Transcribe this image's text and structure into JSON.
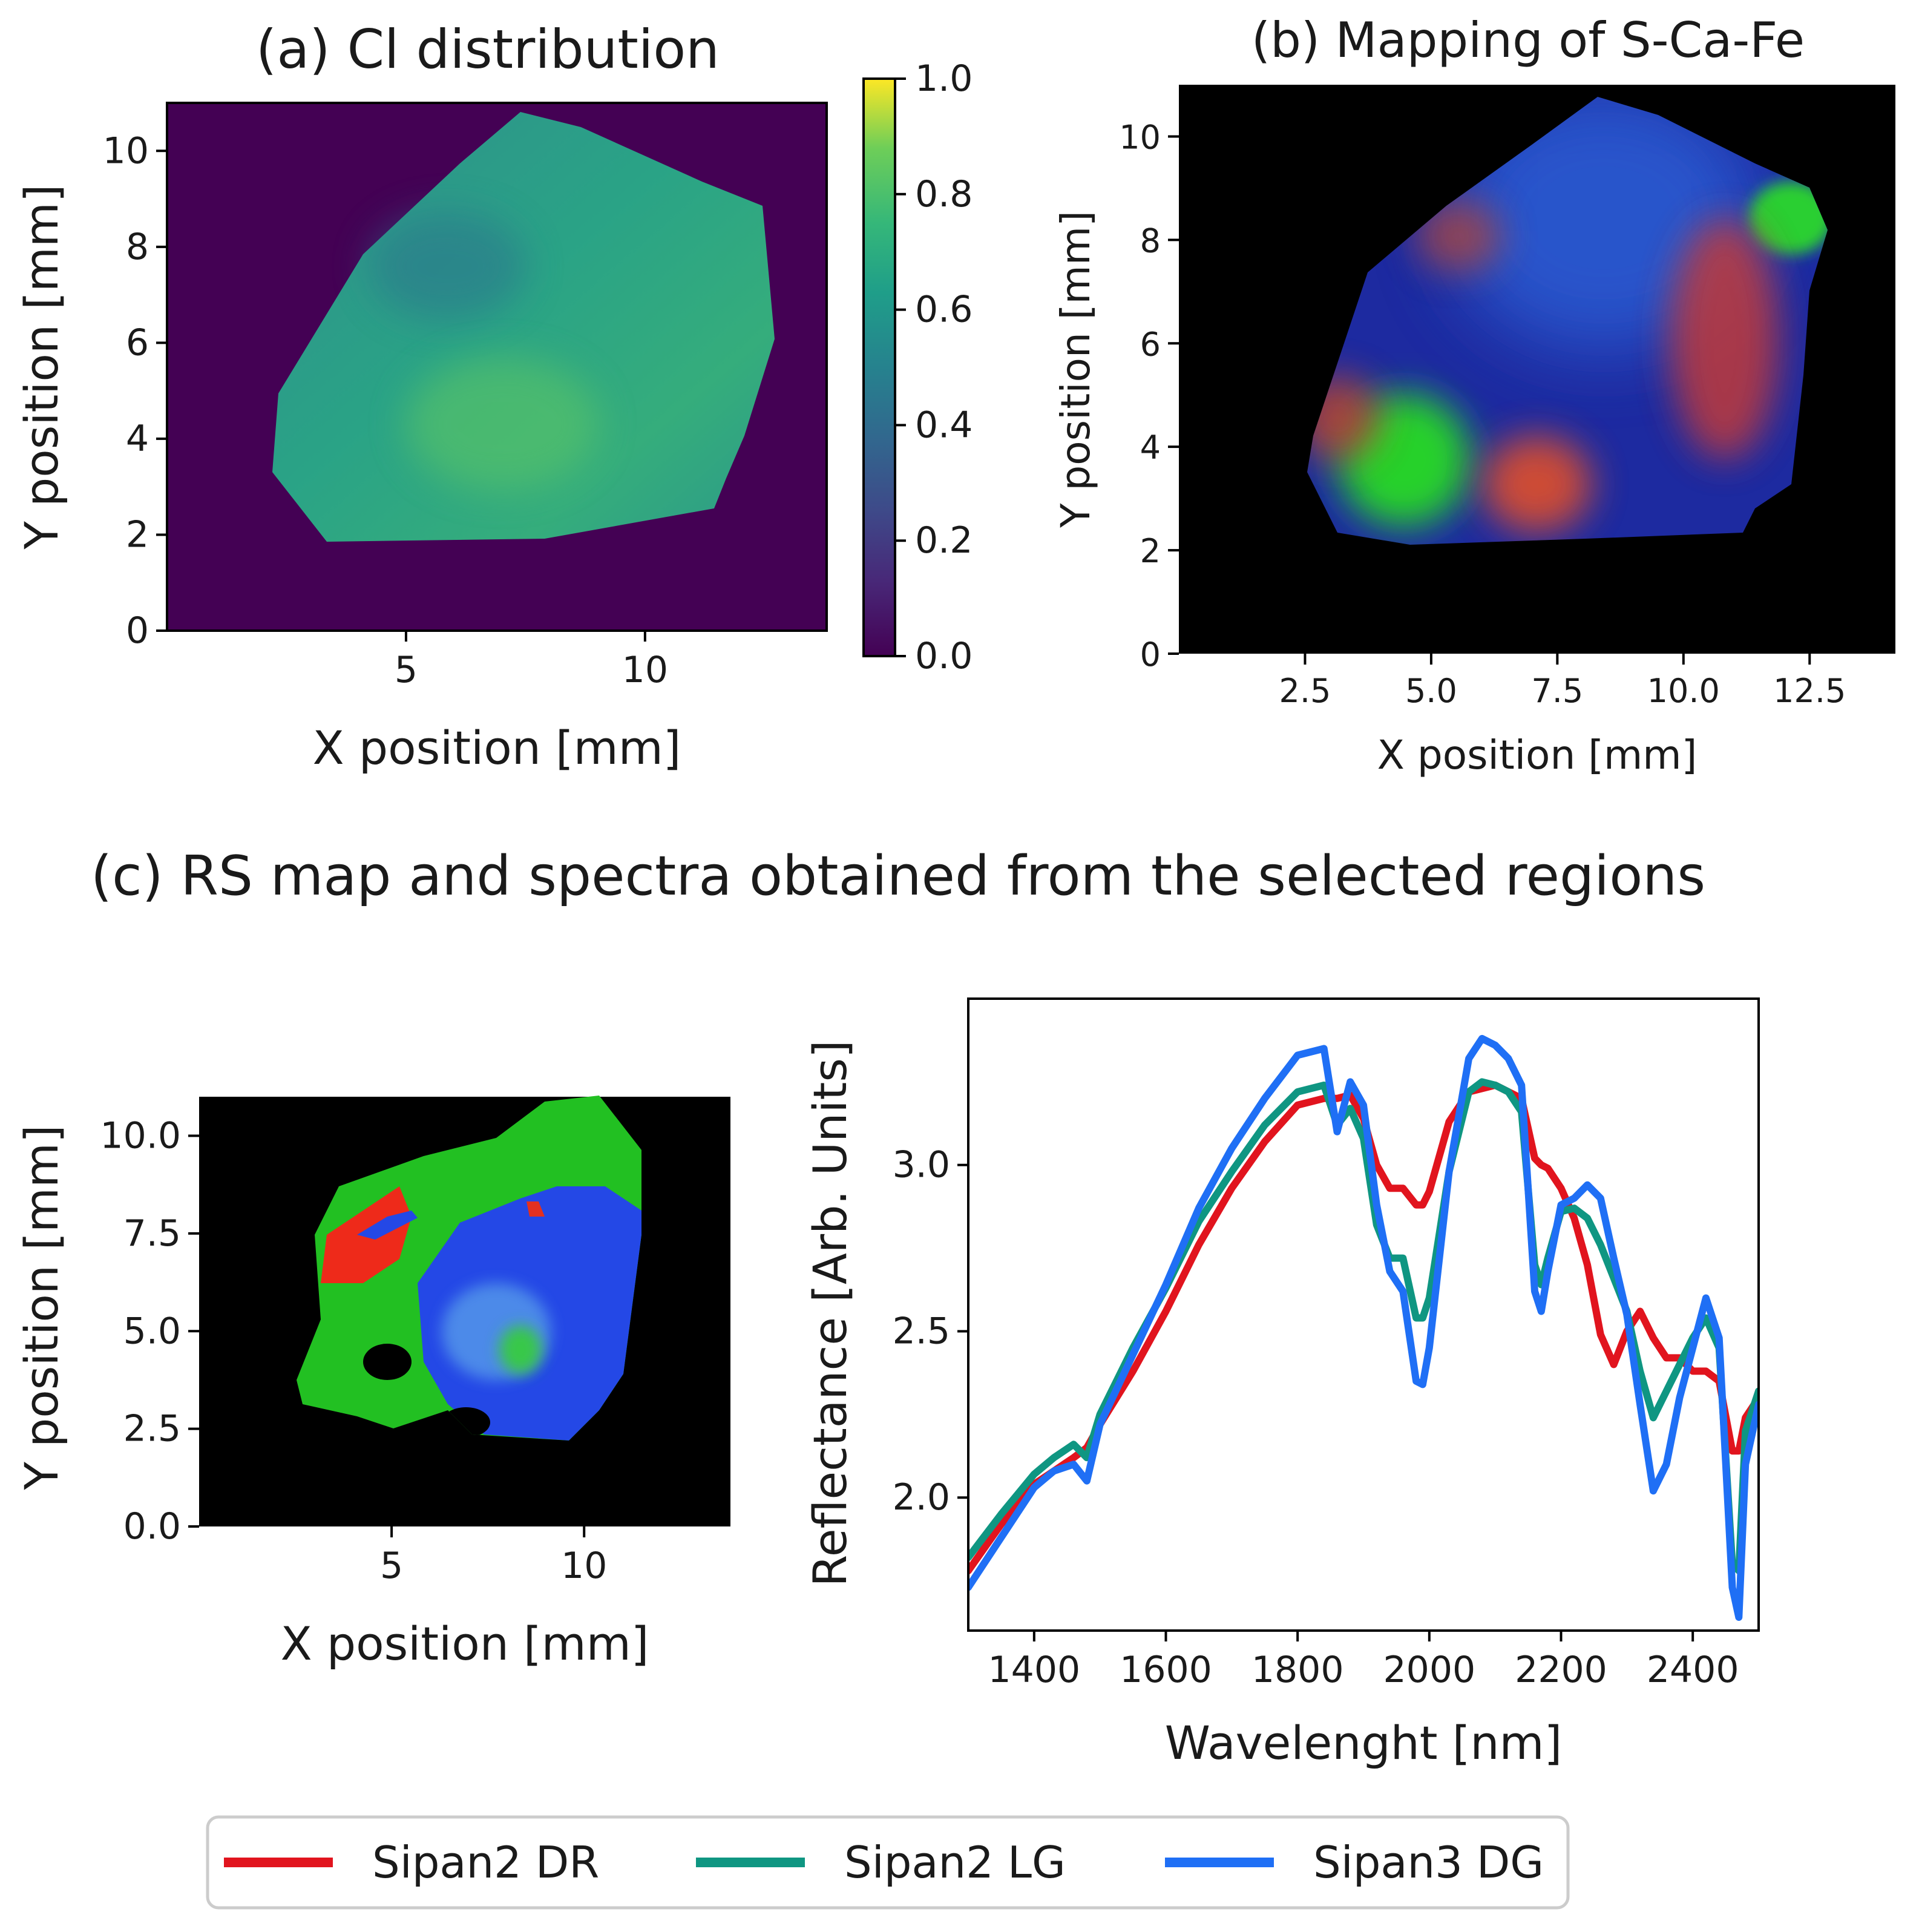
{
  "figure": {
    "panel_c_title": "(c) RS map and spectra obtained from the selected regions"
  },
  "colors": {
    "viridis_dark": "#440154",
    "sipan2_dr": "#e1141e",
    "sipan2_lg": "#0f9682",
    "sipan3_dg": "#1f6ff5",
    "map_background": "#000000"
  },
  "chart_data": [
    {
      "id": "a",
      "type": "heatmap",
      "title": "(a) Cl distribution",
      "xlabel": "X position [mm]",
      "ylabel": "Y position [mm]",
      "xlim": [
        0,
        13.8
      ],
      "ylim": [
        0,
        11
      ],
      "xticks": [
        5,
        10
      ],
      "xtick_labels": [
        "5",
        "10"
      ],
      "yticks": [
        0,
        2,
        4,
        6,
        8,
        10
      ],
      "ytick_labels": [
        "0",
        "2",
        "4",
        "6",
        "8",
        "10"
      ],
      "colormap": "viridis",
      "colorbar": {
        "ticks": [
          0.0,
          0.2,
          0.4,
          0.6,
          0.8,
          1.0
        ],
        "tick_labels": [
          "0.0",
          "0.2",
          "0.4",
          "0.6",
          "0.8",
          "1.0"
        ],
        "range": [
          0.0,
          1.0
        ]
      }
    },
    {
      "id": "b",
      "type": "heatmap",
      "title": "(b) Mapping of S-Ca-Fe",
      "xlabel": "X position [mm]",
      "ylabel": "Y position [mm]",
      "xlim": [
        0,
        14.2
      ],
      "ylim": [
        0,
        11
      ],
      "xticks": [
        2.5,
        5.0,
        7.5,
        10.0,
        12.5
      ],
      "xtick_labels": [
        "2.5",
        "5.0",
        "7.5",
        "10.0",
        "12.5"
      ],
      "yticks": [
        0,
        2,
        4,
        6,
        8,
        10
      ],
      "ytick_labels": [
        "0",
        "2",
        "4",
        "6",
        "8",
        "10"
      ],
      "channels": [
        "S",
        "Ca",
        "Fe"
      ]
    },
    {
      "id": "c-map",
      "type": "heatmap",
      "xlabel": "X position [mm]",
      "ylabel": "Y position [mm]",
      "xlim": [
        0,
        13.8
      ],
      "ylim": [
        0,
        11
      ],
      "xticks": [
        5,
        10
      ],
      "xtick_labels": [
        "5",
        "10"
      ],
      "yticks": [
        0.0,
        2.5,
        5.0,
        7.5,
        10.0
      ],
      "ytick_labels": [
        "0.0",
        "2.5",
        "5.0",
        "7.5",
        "10.0"
      ]
    },
    {
      "id": "c-spectra",
      "type": "line",
      "xlabel": "Wavelenght [nm]",
      "ylabel": "Reflectance [Arb. Units]",
      "xlim": [
        1300,
        2500
      ],
      "ylim": [
        1.6,
        3.5
      ],
      "xticks": [
        1400,
        1600,
        1800,
        2000,
        2200,
        2400
      ],
      "xtick_labels": [
        "1400",
        "1600",
        "1800",
        "2000",
        "2200",
        "2400"
      ],
      "yticks": [
        2.0,
        2.5,
        3.0
      ],
      "ytick_labels": [
        "2.0",
        "2.5",
        "3.0"
      ],
      "x": [
        1300,
        1350,
        1400,
        1430,
        1460,
        1480,
        1500,
        1550,
        1600,
        1650,
        1700,
        1750,
        1800,
        1820,
        1840,
        1860,
        1880,
        1900,
        1920,
        1940,
        1960,
        1980,
        1990,
        2000,
        2030,
        2060,
        2080,
        2100,
        2120,
        2140,
        2160,
        2170,
        2180,
        2200,
        2220,
        2240,
        2260,
        2280,
        2300,
        2320,
        2340,
        2360,
        2380,
        2400,
        2420,
        2440,
        2460,
        2470,
        2480,
        2500
      ],
      "series": [
        {
          "name": "Sipan2 DR",
          "values": [
            1.78,
            1.92,
            2.04,
            2.08,
            2.12,
            2.15,
            2.22,
            2.38,
            2.56,
            2.76,
            2.93,
            3.07,
            3.18,
            3.19,
            3.2,
            3.2,
            3.21,
            3.14,
            3.0,
            2.93,
            2.93,
            2.88,
            2.88,
            2.92,
            3.13,
            3.22,
            3.23,
            3.24,
            3.22,
            3.2,
            3.02,
            3.0,
            2.99,
            2.93,
            2.84,
            2.7,
            2.49,
            2.4,
            2.5,
            2.56,
            2.48,
            2.42,
            2.42,
            2.38,
            2.38,
            2.35,
            2.14,
            2.14,
            2.24,
            2.3
          ]
        },
        {
          "name": "Sipan2 LG",
          "values": [
            1.82,
            1.95,
            2.07,
            2.12,
            2.16,
            2.12,
            2.25,
            2.45,
            2.63,
            2.83,
            2.98,
            3.12,
            3.22,
            3.23,
            3.24,
            3.12,
            3.17,
            3.08,
            2.82,
            2.72,
            2.72,
            2.54,
            2.54,
            2.6,
            2.98,
            3.22,
            3.25,
            3.24,
            3.22,
            3.16,
            2.7,
            2.64,
            2.72,
            2.86,
            2.87,
            2.84,
            2.76,
            2.66,
            2.56,
            2.38,
            2.24,
            2.32,
            2.4,
            2.48,
            2.54,
            2.45,
            1.8,
            1.78,
            2.2,
            2.32
          ]
        },
        {
          "name": "Sipan3 DG",
          "values": [
            1.73,
            1.88,
            2.03,
            2.08,
            2.1,
            2.05,
            2.22,
            2.43,
            2.64,
            2.87,
            3.05,
            3.2,
            3.33,
            3.34,
            3.35,
            3.1,
            3.25,
            3.18,
            2.88,
            2.68,
            2.62,
            2.35,
            2.34,
            2.45,
            2.98,
            3.32,
            3.38,
            3.36,
            3.32,
            3.24,
            2.62,
            2.56,
            2.68,
            2.88,
            2.9,
            2.94,
            2.9,
            2.72,
            2.55,
            2.28,
            2.02,
            2.1,
            2.3,
            2.45,
            2.6,
            2.48,
            1.73,
            1.64,
            2.1,
            2.28
          ]
        }
      ]
    }
  ]
}
